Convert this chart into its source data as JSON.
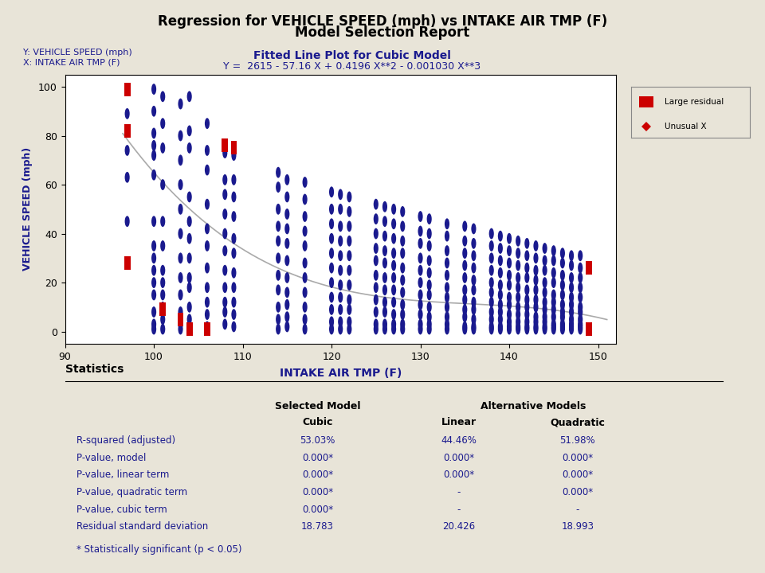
{
  "title_line1": "Regression for VEHICLE SPEED (mph) vs INTAKE AIR TMP (F)",
  "title_line2": "Model Selection Report",
  "subtitle_plot": "Fitted Line Plot for Cubic Model",
  "equation": "Y =  2615 - 57.16 X + 0.4196 X**2 - 0.001030 X**3",
  "ylabel_left1": "Y: VEHICLE SPEED (mph)",
  "ylabel_left2": "X: INTAKE AIR TMP (F)",
  "xlabel": "INTAKE AIR TMP (F)",
  "ylabel": "VEHICLE SPEED (mph)",
  "bg_color": "#E8E4D8",
  "plot_bg": "#FFFFFF",
  "cubic_coeffs": [
    2615,
    -57.16,
    0.4196,
    -0.00103
  ],
  "xlim": [
    90,
    152
  ],
  "ylim": [
    -5,
    105
  ],
  "xticks": [
    90,
    100,
    110,
    120,
    130,
    140,
    150
  ],
  "yticks": [
    0,
    20,
    40,
    60,
    80,
    100
  ],
  "navy_color": "#1a1a8e",
  "red_color": "#CC0000",
  "line_color": "#AAAAAA",
  "stats_table": {
    "row_labels": [
      "R-squared (adjusted)",
      "P-value, model",
      "P-value, linear term",
      "P-value, quadratic term",
      "P-value, cubic term",
      "Residual standard deviation"
    ],
    "cubic": [
      "53.03%",
      "0.000*",
      "0.000*",
      "0.000*",
      "0.000*",
      "18.783"
    ],
    "linear": [
      "44.46%",
      "0.000*",
      "0.000*",
      "-",
      "-",
      "20.426"
    ],
    "quadratic": [
      "51.98%",
      "0.000*",
      "0.000*",
      "0.000*",
      "-",
      "18.993"
    ]
  },
  "footnote": "* Statistically significant (p < 0.05)"
}
